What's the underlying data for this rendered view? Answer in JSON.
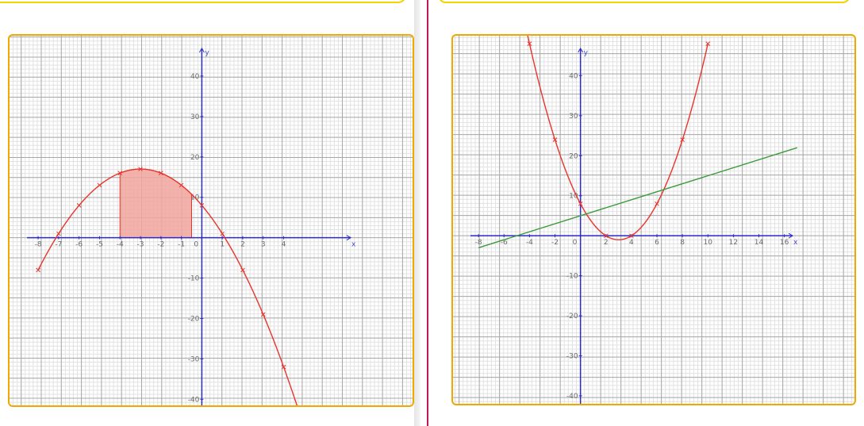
{
  "colors": {
    "grid_minor": "#e2e2e2",
    "grid_major": "#a8a8a8",
    "axis": "#2b2bc8",
    "curve": "#e8342c",
    "line": "#3a9a3a",
    "shade_fill": "#f2a49e",
    "frame": "#f0a800",
    "top_card_border": "#f2d400",
    "divider": "#c2185b"
  },
  "chart_data": [
    {
      "type": "line",
      "xlabel": "x",
      "ylabel": "y",
      "grid": true,
      "xlim": [
        -9.4,
        10.3
      ],
      "ylim": [
        -41.5,
        50
      ],
      "x_ticks": [
        -8,
        -7,
        -6,
        -5,
        -4,
        -3,
        -2,
        -1,
        0,
        1,
        2,
        3,
        4
      ],
      "x_tick_labels": [
        "-8",
        "-7",
        "-6",
        "-5",
        "-4",
        "-3",
        "-2",
        "-1",
        "0",
        "1",
        "2",
        "3",
        "4"
      ],
      "y_ticks": [
        40,
        30,
        20,
        10,
        -10,
        -20,
        -30,
        -40
      ],
      "y_tick_labels": [
        "40",
        "30",
        "20",
        "10",
        "-10",
        "-20",
        "-30",
        "-40"
      ],
      "series": [
        {
          "kind": "curve",
          "color": "#e8342c",
          "equation_coefficients": {
            "a": -1,
            "b": -6,
            "c": 8
          },
          "x_range": [
            -8,
            4.8
          ],
          "marked_points": [
            {
              "x": -8,
              "y": -8
            },
            {
              "x": -7,
              "y": 1
            },
            {
              "x": -6,
              "y": 8
            },
            {
              "x": -5,
              "y": 13
            },
            {
              "x": -4,
              "y": 16
            },
            {
              "x": -3,
              "y": 17
            },
            {
              "x": -2,
              "y": 16
            },
            {
              "x": -1,
              "y": 13
            },
            {
              "x": 0,
              "y": 8
            },
            {
              "x": 1,
              "y": 1
            },
            {
              "x": 2,
              "y": -8
            },
            {
              "x": 3,
              "y": -19
            },
            {
              "x": 4,
              "y": -32
            }
          ]
        }
      ],
      "shaded_region": {
        "x_from": -4,
        "x_to": -0.5
      }
    },
    {
      "type": "line",
      "xlabel": "x",
      "ylabel": "y",
      "grid": true,
      "xlim": [
        -10,
        21.5
      ],
      "ylim": [
        -42,
        50
      ],
      "x_ticks": [
        -8,
        -6,
        -4,
        -2,
        0,
        2,
        4,
        6,
        8,
        10,
        12,
        14,
        16
      ],
      "x_tick_labels": [
        "-8",
        "-6",
        "-4",
        "-2",
        "0",
        "2",
        "4",
        "6",
        "8",
        "10",
        "12",
        "14",
        "16"
      ],
      "y_ticks": [
        40,
        30,
        20,
        10,
        -10,
        -20,
        -30,
        -40
      ],
      "y_tick_labels": [
        "40",
        "30",
        "20",
        "10",
        "-10",
        "-20",
        "-30",
        "-40"
      ],
      "series": [
        {
          "kind": "curve",
          "color": "#e8342c",
          "equation_coefficients": {
            "a": 1,
            "b": -6,
            "c": 8
          },
          "x_range": [
            -4.5,
            10
          ],
          "marked_points": [
            {
              "x": -4,
              "y": 48
            },
            {
              "x": -2,
              "y": 24
            },
            {
              "x": 0,
              "y": 8
            },
            {
              "x": 2,
              "y": 0
            },
            {
              "x": 4,
              "y": 0
            },
            {
              "x": 6,
              "y": 8
            },
            {
              "x": 8,
              "y": 24
            },
            {
              "x": 10,
              "y": 48
            }
          ]
        },
        {
          "kind": "segment",
          "color": "#3a9a3a",
          "points": [
            {
              "x": -8,
              "y": -3
            },
            {
              "x": 17,
              "y": 22
            }
          ]
        }
      ]
    }
  ]
}
